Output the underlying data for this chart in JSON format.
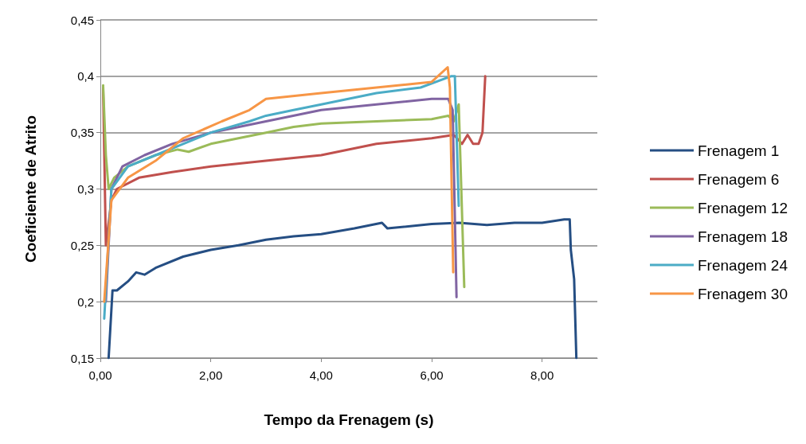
{
  "chart_data": {
    "type": "line",
    "xlabel": "Tempo da Frenagem (s)",
    "ylabel": "Coeficiente de Atrito",
    "xlim": [
      0,
      9
    ],
    "xticks": [
      {
        "value": 0,
        "label": "0,00"
      },
      {
        "value": 2,
        "label": "2,00"
      },
      {
        "value": 4,
        "label": "4,00"
      },
      {
        "value": 6,
        "label": "6,00"
      },
      {
        "value": 8,
        "label": "8,00"
      }
    ],
    "ylim": [
      0.15,
      0.45
    ],
    "yticks": [
      {
        "value": 0.15,
        "label": "0,15"
      },
      {
        "value": 0.2,
        "label": "0,2"
      },
      {
        "value": 0.25,
        "label": "0,25"
      },
      {
        "value": 0.3,
        "label": "0,3"
      },
      {
        "value": 0.35,
        "label": "0,35"
      },
      {
        "value": 0.4,
        "label": "0,4"
      },
      {
        "value": 0.45,
        "label": "0,45"
      }
    ],
    "grid": "y",
    "legend": "right",
    "marker": "none",
    "line_style": "solid",
    "series": [
      {
        "name": "Frenagem 1",
        "color": "#254e83",
        "x": [
          0.15,
          0.22,
          0.3,
          0.5,
          0.65,
          0.8,
          1.0,
          1.5,
          2.0,
          2.5,
          3.0,
          3.5,
          4.0,
          4.6,
          5.1,
          5.2,
          6.0,
          6.5,
          7.0,
          7.5,
          8.0,
          8.4,
          8.5,
          8.52,
          8.58,
          8.62
        ],
        "values": [
          0.15,
          0.21,
          0.21,
          0.218,
          0.226,
          0.224,
          0.23,
          0.24,
          0.246,
          0.25,
          0.255,
          0.258,
          0.26,
          0.265,
          0.27,
          0.265,
          0.269,
          0.27,
          0.268,
          0.27,
          0.27,
          0.273,
          0.273,
          0.246,
          0.22,
          0.15
        ]
      },
      {
        "name": "Frenagem 6",
        "color": "#c0504d",
        "x": [
          0.05,
          0.1,
          0.2,
          0.3,
          0.7,
          1.3,
          2.0,
          3.0,
          4.0,
          5.0,
          6.0,
          6.4,
          6.55,
          6.65,
          6.75,
          6.85,
          6.92,
          6.97
        ],
        "values": [
          0.39,
          0.25,
          0.29,
          0.3,
          0.31,
          0.315,
          0.32,
          0.325,
          0.33,
          0.34,
          0.345,
          0.348,
          0.34,
          0.348,
          0.34,
          0.34,
          0.35,
          0.4
        ]
      },
      {
        "name": "Frenagem 12",
        "color": "#9bbb59",
        "x": [
          0.05,
          0.1,
          0.15,
          0.25,
          0.5,
          1.0,
          1.4,
          1.6,
          2.0,
          2.5,
          3.0,
          3.5,
          4.0,
          5.0,
          6.0,
          6.3,
          6.4,
          6.49,
          6.59
        ],
        "values": [
          0.392,
          0.33,
          0.3,
          0.31,
          0.32,
          0.33,
          0.335,
          0.333,
          0.34,
          0.345,
          0.35,
          0.355,
          0.358,
          0.36,
          0.362,
          0.365,
          0.36,
          0.375,
          0.213
        ]
      },
      {
        "name": "Frenagem 18",
        "color": "#8064a2",
        "x": [
          0.1,
          0.2,
          0.4,
          0.8,
          1.3,
          2.0,
          3.0,
          4.0,
          5.0,
          6.0,
          6.3,
          6.38,
          6.45
        ],
        "values": [
          0.2,
          0.3,
          0.32,
          0.33,
          0.34,
          0.35,
          0.36,
          0.37,
          0.375,
          0.38,
          0.38,
          0.37,
          0.204
        ]
      },
      {
        "name": "Frenagem 24",
        "color": "#4bacc6",
        "x": [
          0.07,
          0.2,
          0.5,
          1.0,
          1.5,
          2.0,
          2.7,
          3.0,
          3.5,
          4.0,
          5.0,
          5.8,
          6.35,
          6.42,
          6.49
        ],
        "values": [
          0.185,
          0.3,
          0.32,
          0.33,
          0.34,
          0.35,
          0.36,
          0.365,
          0.37,
          0.375,
          0.385,
          0.39,
          0.4,
          0.4,
          0.285
        ]
      },
      {
        "name": "Frenagem 30",
        "color": "#f79646",
        "x": [
          0.07,
          0.2,
          0.5,
          1.0,
          1.5,
          2.2,
          2.7,
          3.0,
          4.0,
          5.0,
          6.0,
          6.29,
          6.33,
          6.39
        ],
        "values": [
          0.2,
          0.29,
          0.31,
          0.325,
          0.345,
          0.36,
          0.37,
          0.38,
          0.385,
          0.39,
          0.395,
          0.408,
          0.39,
          0.226
        ]
      }
    ]
  }
}
